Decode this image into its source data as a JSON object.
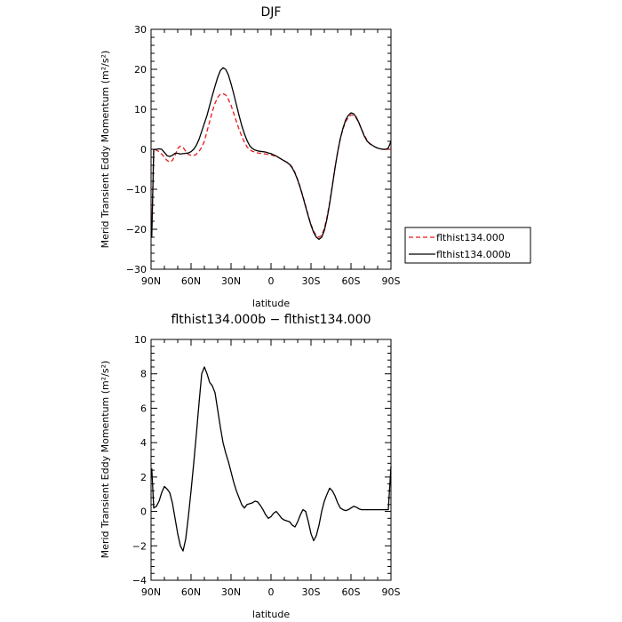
{
  "chart_data": [
    {
      "type": "line",
      "title": "DJF",
      "xlabel": "latitude",
      "ylabel": "Merid Transient Eddy Momentum  (m²/s²)",
      "xlim": [
        90,
        -90
      ],
      "ylim": [
        -30,
        30
      ],
      "x_ticks": [
        90,
        60,
        30,
        0,
        -30,
        -60,
        -90
      ],
      "x_tick_labels": [
        "90N",
        "60N",
        "30N",
        "0",
        "30S",
        "60S",
        "90S"
      ],
      "y_ticks": [
        -30,
        -20,
        -10,
        0,
        10,
        20,
        30
      ],
      "y_tick_labels": [
        "−30",
        "−20",
        "−10",
        "0",
        "10",
        "20",
        "30"
      ],
      "legend_position": "outside-right",
      "series": [
        {
          "name": "flthist134.000",
          "color": "#e8191b",
          "dash": "dashed",
          "x": [
            89.5,
            88,
            86,
            84,
            82,
            80,
            78,
            76,
            74,
            72,
            70,
            68,
            66,
            64,
            62,
            60,
            58,
            56,
            54,
            52,
            50,
            48,
            46,
            44,
            42,
            40,
            38,
            36,
            34,
            32,
            30,
            28,
            26,
            24,
            22,
            20,
            18,
            16,
            14,
            12,
            10,
            8,
            6,
            4,
            2,
            0,
            -2,
            -4,
            -6,
            -8,
            -10,
            -12,
            -14,
            -16,
            -18,
            -20,
            -22,
            -24,
            -26,
            -28,
            -30,
            -32,
            -34,
            -36,
            -38,
            -40,
            -42,
            -44,
            -46,
            -48,
            -50,
            -52,
            -54,
            -56,
            -58,
            -60,
            -62,
            -64,
            -66,
            -68,
            -70,
            -72,
            -74,
            -76,
            -78,
            -80,
            -82,
            -84,
            -86,
            -88,
            -90
          ],
          "y": [
            -21,
            0,
            -0.2,
            -0.6,
            -1.2,
            -2.0,
            -2.8,
            -3.2,
            -2.8,
            -1.5,
            0.2,
            0.8,
            0.5,
            -0.5,
            -1.3,
            -1.5,
            -1.6,
            -1.2,
            -0.5,
            0.5,
            2.0,
            4.5,
            7.0,
            9.5,
            11.5,
            13.0,
            13.8,
            13.9,
            13.6,
            12.5,
            11.0,
            9.0,
            7.0,
            5.0,
            3.3,
            1.8,
            0.6,
            -0.1,
            -0.5,
            -0.7,
            -0.9,
            -1.0,
            -1.1,
            -1.2,
            -1.3,
            -1.4,
            -1.6,
            -1.8,
            -2.1,
            -2.5,
            -2.9,
            -3.3,
            -3.7,
            -4.5,
            -5.8,
            -7.5,
            -9.5,
            -11.8,
            -14.2,
            -16.6,
            -18.8,
            -20.5,
            -21.6,
            -22.0,
            -21.5,
            -19.8,
            -17.0,
            -13.3,
            -9.0,
            -4.6,
            -0.7,
            2.6,
            5.1,
            6.9,
            8.0,
            8.6,
            8.5,
            7.8,
            6.5,
            5.0,
            3.5,
            2.3,
            1.5,
            1.0,
            0.6,
            0.3,
            0.1,
            0,
            -0.1,
            0,
            0
          ]
        },
        {
          "name": "flthist134.000b",
          "color": "#000000",
          "dash": "solid",
          "x": [
            89.5,
            88,
            86,
            84,
            82,
            80,
            78,
            76,
            74,
            72,
            70,
            68,
            66,
            64,
            62,
            60,
            58,
            56,
            54,
            52,
            50,
            48,
            46,
            44,
            42,
            40,
            38,
            36,
            34,
            32,
            30,
            28,
            26,
            24,
            22,
            20,
            18,
            16,
            14,
            12,
            10,
            8,
            6,
            4,
            2,
            0,
            -2,
            -4,
            -6,
            -8,
            -10,
            -12,
            -14,
            -16,
            -18,
            -20,
            -22,
            -24,
            -26,
            -28,
            -30,
            -32,
            -34,
            -36,
            -38,
            -40,
            -42,
            -44,
            -46,
            -48,
            -50,
            -52,
            -54,
            -56,
            -58,
            -60,
            -62,
            -64,
            -66,
            -68,
            -70,
            -72,
            -74,
            -76,
            -78,
            -80,
            -82,
            -84,
            -86,
            -88,
            -90
          ],
          "y": [
            -22,
            -0.1,
            0,
            0.1,
            0,
            -0.8,
            -1.6,
            -1.8,
            -1.5,
            -1.0,
            -1.0,
            -1.2,
            -1.1,
            -1.0,
            -0.9,
            -0.6,
            0,
            1.0,
            2.5,
            4.5,
            6.5,
            8.5,
            11.0,
            13.5,
            15.8,
            18.0,
            19.7,
            20.4,
            20.0,
            18.6,
            16.4,
            13.9,
            11.2,
            8.5,
            6.0,
            3.9,
            2.2,
            0.9,
            0.2,
            -0.2,
            -0.4,
            -0.5,
            -0.6,
            -0.7,
            -0.9,
            -1.1,
            -1.4,
            -1.7,
            -2.1,
            -2.5,
            -2.9,
            -3.3,
            -3.8,
            -4.7,
            -6.0,
            -7.7,
            -9.7,
            -12.0,
            -14.4,
            -16.8,
            -19.0,
            -20.8,
            -22.0,
            -22.5,
            -22.0,
            -20.3,
            -17.4,
            -13.6,
            -9.2,
            -4.7,
            -0.7,
            2.7,
            5.3,
            7.3,
            8.5,
            9.1,
            8.9,
            8.0,
            6.6,
            4.9,
            3.3,
            2.1,
            1.4,
            1.0,
            0.6,
            0.3,
            0.1,
            0,
            0,
            0.3,
            2
          ]
        }
      ]
    },
    {
      "type": "line",
      "title": "flthist134.000b − flthist134.000",
      "xlabel": "latitude",
      "ylabel": "Merid Transient Eddy Momentum  (m²/s²)",
      "xlim": [
        90,
        -90
      ],
      "ylim": [
        -4,
        10
      ],
      "x_ticks": [
        90,
        60,
        30,
        0,
        -30,
        -60,
        -90
      ],
      "x_tick_labels": [
        "90N",
        "60N",
        "30N",
        "0",
        "30S",
        "60S",
        "90S"
      ],
      "y_ticks": [
        -4,
        -2,
        0,
        2,
        4,
        6,
        8,
        10
      ],
      "y_tick_labels": [
        "−4",
        "−2",
        "0",
        "2",
        "4",
        "6",
        "8",
        "10"
      ],
      "series": [
        {
          "color": "#000000",
          "dash": "solid",
          "x": [
            89.5,
            88,
            86,
            84,
            82,
            80,
            78,
            76,
            74,
            72,
            70,
            68,
            66,
            64,
            62,
            60,
            58,
            56,
            54,
            52,
            50,
            48,
            46,
            44,
            42,
            40,
            38,
            36,
            34,
            32,
            30,
            28,
            26,
            24,
            22,
            20,
            18,
            16,
            14,
            12,
            10,
            8,
            6,
            4,
            2,
            0,
            -2,
            -4,
            -6,
            -8,
            -10,
            -12,
            -14,
            -16,
            -18,
            -20,
            -22,
            -24,
            -26,
            -28,
            -30,
            -32,
            -34,
            -36,
            -38,
            -40,
            -42,
            -44,
            -46,
            -48,
            -50,
            -52,
            -54,
            -56,
            -58,
            -60,
            -62,
            -64,
            -66,
            -68,
            -70,
            -72,
            -74,
            -76,
            -78,
            -80,
            -82,
            -84,
            -86,
            -88,
            -90
          ],
          "y": [
            2.5,
            0.2,
            0.3,
            0.6,
            1.1,
            1.45,
            1.3,
            1.1,
            0.5,
            -0.4,
            -1.3,
            -2.0,
            -2.3,
            -1.6,
            -0.3,
            1.2,
            2.8,
            4.5,
            6.3,
            8.0,
            8.4,
            8.0,
            7.5,
            7.3,
            6.9,
            5.9,
            4.9,
            4.0,
            3.4,
            2.9,
            2.3,
            1.7,
            1.2,
            0.8,
            0.4,
            0.2,
            0.4,
            0.45,
            0.5,
            0.6,
            0.55,
            0.35,
            0.1,
            -0.2,
            -0.4,
            -0.3,
            -0.1,
            0,
            -0.2,
            -0.4,
            -0.5,
            -0.55,
            -0.6,
            -0.8,
            -0.9,
            -0.6,
            -0.2,
            0.1,
            0,
            -0.6,
            -1.3,
            -1.7,
            -1.4,
            -0.8,
            0,
            0.6,
            1.0,
            1.35,
            1.2,
            0.9,
            0.5,
            0.2,
            0.1,
            0.05,
            0.1,
            0.2,
            0.3,
            0.25,
            0.15,
            0.1,
            0.1,
            0.1,
            0.1,
            0.1,
            0.1,
            0.1,
            0.1,
            0.1,
            0.1,
            0.1,
            2.6
          ]
        }
      ]
    }
  ]
}
